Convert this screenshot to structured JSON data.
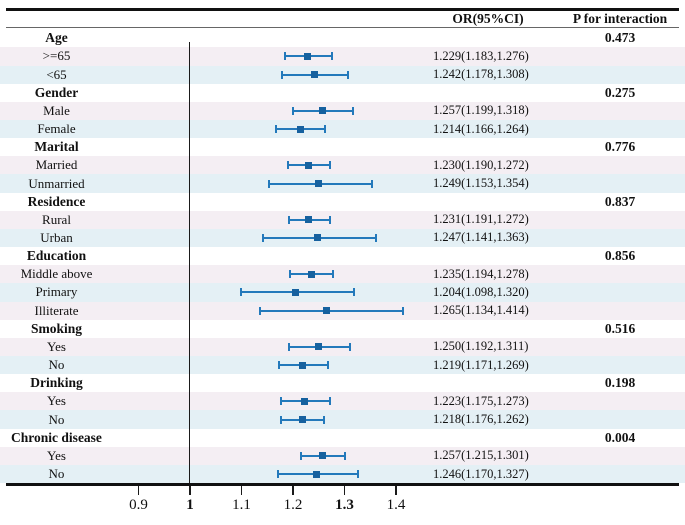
{
  "colors": {
    "row_pink": "#f4eef3",
    "row_blue": "#e4f0f5",
    "bar_line": "#2379bb",
    "marker": "#16619f",
    "rule": "#111111"
  },
  "chart_data": {
    "type": "forest",
    "title": "",
    "columns": {
      "or_header": "OR(95%CI)",
      "p_header": "P for interaction"
    },
    "x_axis": {
      "reference_line": 1,
      "range": [
        0.82,
        1.46
      ],
      "ticks": [
        {
          "label": "0.9",
          "value": 0.9,
          "bold": false
        },
        {
          "label": "1",
          "value": 1.0,
          "bold": true
        },
        {
          "label": "1.1",
          "value": 1.1,
          "bold": false
        },
        {
          "label": "1.2",
          "value": 1.2,
          "bold": false
        },
        {
          "label": "1.3",
          "value": 1.3,
          "bold": true
        },
        {
          "label": "1.4",
          "value": 1.4,
          "bold": false
        }
      ]
    },
    "groups": [
      {
        "label": "Age",
        "p_interaction": "0.473",
        "rows": [
          {
            "label": ">=65",
            "or": 1.229,
            "ci_low": 1.183,
            "ci_high": 1.276,
            "text": "1.229(1.183,1.276)"
          },
          {
            "label": "<65",
            "or": 1.242,
            "ci_low": 1.178,
            "ci_high": 1.308,
            "text": "1.242(1.178,1.308)"
          }
        ]
      },
      {
        "label": "Gender",
        "p_interaction": "0.275",
        "rows": [
          {
            "label": "Male",
            "or": 1.257,
            "ci_low": 1.199,
            "ci_high": 1.318,
            "text": "1.257(1.199,1.318)"
          },
          {
            "label": "Female",
            "or": 1.214,
            "ci_low": 1.166,
            "ci_high": 1.264,
            "text": "1.214(1.166,1.264)"
          }
        ]
      },
      {
        "label": "Marital",
        "p_interaction": "0.776",
        "rows": [
          {
            "label": "Married",
            "or": 1.23,
            "ci_low": 1.19,
            "ci_high": 1.272,
            "text": "1.230(1.190,1.272)"
          },
          {
            "label": "Unmarried",
            "or": 1.249,
            "ci_low": 1.153,
            "ci_high": 1.354,
            "text": "1.249(1.153,1.354)"
          }
        ]
      },
      {
        "label": "Residence",
        "p_interaction": "0.837",
        "rows": [
          {
            "label": "Rural",
            "or": 1.231,
            "ci_low": 1.191,
            "ci_high": 1.272,
            "text": "1.231(1.191,1.272)"
          },
          {
            "label": "Urban",
            "or": 1.247,
            "ci_low": 1.141,
            "ci_high": 1.363,
            "text": "1.247(1.141,1.363)"
          }
        ]
      },
      {
        "label": "Education",
        "p_interaction": "0.856",
        "rows": [
          {
            "label": "Middle above",
            "or": 1.235,
            "ci_low": 1.194,
            "ci_high": 1.278,
            "text": "1.235(1.194,1.278)"
          },
          {
            "label": "Primary",
            "or": 1.204,
            "ci_low": 1.098,
            "ci_high": 1.32,
            "text": "1.204(1.098,1.320)"
          },
          {
            "label": "Illiterate",
            "or": 1.265,
            "ci_low": 1.134,
            "ci_high": 1.414,
            "text": "1.265(1.134,1.414)"
          }
        ]
      },
      {
        "label": "Smoking",
        "p_interaction": "0.516",
        "rows": [
          {
            "label": "Yes",
            "or": 1.25,
            "ci_low": 1.192,
            "ci_high": 1.311,
            "text": "1.250(1.192,1.311)"
          },
          {
            "label": "No",
            "or": 1.219,
            "ci_low": 1.171,
            "ci_high": 1.269,
            "text": "1.219(1.171,1.269)"
          }
        ]
      },
      {
        "label": "Drinking",
        "p_interaction": "0.198",
        "rows": [
          {
            "label": "Yes",
            "or": 1.223,
            "ci_low": 1.175,
            "ci_high": 1.273,
            "text": "1.223(1.175,1.273)"
          },
          {
            "label": "No",
            "or": 1.218,
            "ci_low": 1.176,
            "ci_high": 1.262,
            "text": "1.218(1.176,1.262)"
          }
        ]
      },
      {
        "label": "Chronic disease",
        "p_interaction": "0.004",
        "rows": [
          {
            "label": "Yes",
            "or": 1.257,
            "ci_low": 1.215,
            "ci_high": 1.301,
            "text": "1.257(1.215,1.301)"
          },
          {
            "label": "No",
            "or": 1.246,
            "ci_low": 1.17,
            "ci_high": 1.327,
            "text": "1.246(1.170,1.327)"
          }
        ]
      }
    ]
  }
}
